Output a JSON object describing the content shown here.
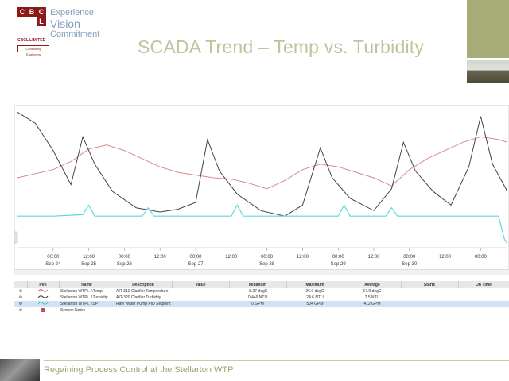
{
  "logo": {
    "cells": [
      "C",
      "B",
      "C",
      "L"
    ],
    "sub": "CBCL LIMITED",
    "tag": "Consulting Engineers"
  },
  "tagline": [
    "Experience",
    "Vision",
    "Commitment"
  ],
  "title": "SCADA Trend – Temp vs. Turbidity",
  "chart_data": {
    "type": "line",
    "xlabel": "",
    "ylabel": "",
    "x_ticks": [
      {
        "time": "00:00",
        "date": "Sep 24"
      },
      {
        "time": "12:00",
        "date": "Sep 25"
      },
      {
        "time": "00:00",
        "date": "Sep 26"
      },
      {
        "time": "12:00",
        "date": ""
      },
      {
        "time": "00:00",
        "date": "Sep 27"
      },
      {
        "time": "12:00",
        "date": ""
      },
      {
        "time": "00:00",
        "date": "Sep 28"
      },
      {
        "time": "12:00",
        "date": ""
      },
      {
        "time": "00:00",
        "date": "Sep 29"
      },
      {
        "time": "12:00",
        "date": ""
      },
      {
        "time": "00:00",
        "date": "Sep 30"
      },
      {
        "time": "12:00",
        "date": ""
      },
      {
        "time": "00:00",
        "date": ""
      },
      {
        "time": "12:00",
        "date": ""
      }
    ],
    "x_start_hours": -12,
    "x_end_hours": 153,
    "series": [
      {
        "color": "#d88a8a",
        "points": [
          [
            -12,
            0.5
          ],
          [
            0,
            0.56
          ],
          [
            6,
            0.62
          ],
          [
            12,
            0.71
          ],
          [
            18,
            0.74
          ],
          [
            24,
            0.7
          ],
          [
            30,
            0.64
          ],
          [
            36,
            0.58
          ],
          [
            42,
            0.54
          ],
          [
            48,
            0.52
          ],
          [
            54,
            0.5
          ],
          [
            60,
            0.49
          ],
          [
            66,
            0.46
          ],
          [
            72,
            0.42
          ],
          [
            78,
            0.48
          ],
          [
            84,
            0.56
          ],
          [
            90,
            0.6
          ],
          [
            96,
            0.58
          ],
          [
            102,
            0.54
          ],
          [
            108,
            0.5
          ],
          [
            114,
            0.44
          ],
          [
            120,
            0.56
          ],
          [
            126,
            0.64
          ],
          [
            132,
            0.7
          ],
          [
            138,
            0.76
          ],
          [
            144,
            0.8
          ],
          [
            150,
            0.78
          ],
          [
            153,
            0.76
          ]
        ]
      },
      {
        "color": "#444444",
        "points": [
          [
            -12,
            0.98
          ],
          [
            -6,
            0.9
          ],
          [
            0,
            0.7
          ],
          [
            6,
            0.45
          ],
          [
            10,
            0.8
          ],
          [
            14,
            0.6
          ],
          [
            20,
            0.4
          ],
          [
            28,
            0.28
          ],
          [
            36,
            0.25
          ],
          [
            42,
            0.27
          ],
          [
            48,
            0.32
          ],
          [
            52,
            0.78
          ],
          [
            56,
            0.55
          ],
          [
            62,
            0.38
          ],
          [
            70,
            0.26
          ],
          [
            78,
            0.22
          ],
          [
            84,
            0.3
          ],
          [
            90,
            0.72
          ],
          [
            94,
            0.5
          ],
          [
            100,
            0.35
          ],
          [
            108,
            0.26
          ],
          [
            114,
            0.42
          ],
          [
            118,
            0.76
          ],
          [
            122,
            0.55
          ],
          [
            128,
            0.4
          ],
          [
            134,
            0.3
          ],
          [
            140,
            0.58
          ],
          [
            144,
            0.95
          ],
          [
            148,
            0.6
          ],
          [
            153,
            0.4
          ]
        ]
      },
      {
        "color": "#5fd7dc",
        "points": [
          [
            -12,
            0.22
          ],
          [
            0,
            0.22
          ],
          [
            10,
            0.23
          ],
          [
            12,
            0.3
          ],
          [
            14,
            0.22
          ],
          [
            30,
            0.22
          ],
          [
            32,
            0.28
          ],
          [
            34,
            0.22
          ],
          [
            60,
            0.22
          ],
          [
            62,
            0.3
          ],
          [
            64,
            0.22
          ],
          [
            96,
            0.22
          ],
          [
            98,
            0.3
          ],
          [
            100,
            0.22
          ],
          [
            112,
            0.22
          ],
          [
            114,
            0.28
          ],
          [
            116,
            0.22
          ],
          [
            150,
            0.22
          ],
          [
            152,
            0.05
          ],
          [
            153,
            0.02
          ]
        ]
      }
    ]
  },
  "pens": {
    "headers": [
      "",
      "Pen",
      "Name",
      "Description",
      "Value",
      "Minimum",
      "Maximum",
      "Average",
      "Starts",
      "On Time"
    ],
    "rows": [
      {
        "name": "Stellarton WTP\\...\\Temp",
        "desc": "AIT-310 Clarifier Temperature",
        "value": "",
        "min": "-8.27 degC",
        "max": "26.9 degC",
        "avg": "17.9 degC",
        "starts": "",
        "on": "",
        "color": "#c0504d",
        "selected": false
      },
      {
        "name": "Stellarton WTP\\...\\Turbidity",
        "desc": "AIT-320 Clarifier Turbidity",
        "value": "",
        "min": "0.449 NTU",
        "max": "24.6 NTU",
        "avg": "2.5 NTU",
        "starts": "",
        "on": "",
        "color": "#333333",
        "selected": false
      },
      {
        "name": "Stellarton WTP\\...\\SP",
        "desc": "Raw Water Pump PID Setpoint",
        "value": "",
        "min": "0 GPM",
        "max": "504 GPM",
        "avg": "412 GPM",
        "starts": "",
        "on": "",
        "color": "#4fc3c8",
        "selected": true
      },
      {
        "name": "System Notes",
        "desc": "",
        "value": "",
        "min": "",
        "max": "",
        "avg": "",
        "starts": "",
        "on": "",
        "color": "",
        "selected": false
      }
    ]
  },
  "footer": {
    "text": "Regaining Process Control at the Stellarton WTP"
  }
}
